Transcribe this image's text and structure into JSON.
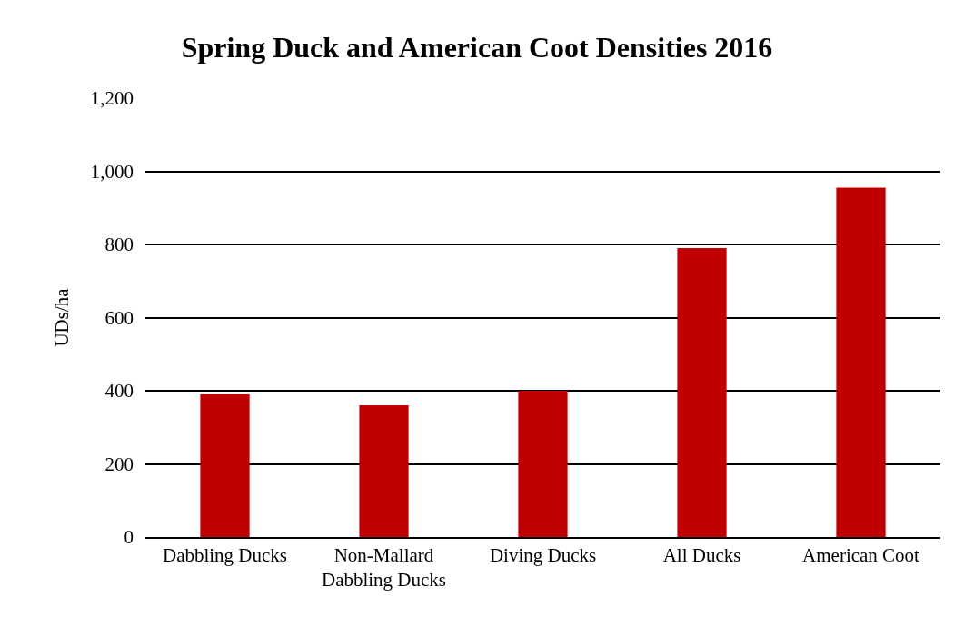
{
  "chart_data": {
    "type": "bar",
    "title": "Spring Duck and American Coot Densities 2016",
    "ylabel": "UDs/ha",
    "categories": [
      "Dabbling Ducks",
      "Non-Mallard Dabbling Ducks",
      "Diving Ducks",
      "All Ducks",
      "American Coot"
    ],
    "values": [
      390,
      360,
      400,
      790,
      955
    ],
    "color": "#c00000",
    "ylim": [
      0,
      1200
    ],
    "yticks": [
      0,
      {
        "value": 200,
        "label": "200"
      },
      {
        "value": 400,
        "label": "400"
      },
      {
        "value": 600,
        "label": "600"
      },
      {
        "value": 800,
        "label": "800"
      },
      {
        "value": 1000,
        "label": "1,000"
      },
      {
        "value": 1200,
        "label": "1,200"
      }
    ],
    "grid": "y",
    "legend": false
  }
}
